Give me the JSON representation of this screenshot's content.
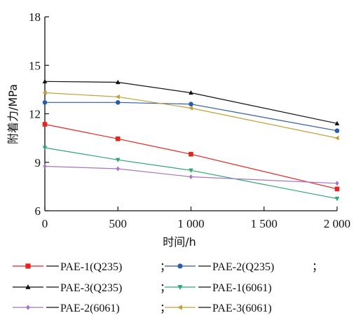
{
  "chart_data": {
    "type": "line",
    "xlabel": "时间/h",
    "ylabel": "附着力/MPa",
    "xlim": [
      0,
      2000
    ],
    "ylim": [
      6,
      18
    ],
    "xticks": [
      0,
      500,
      1000,
      1500,
      2000
    ],
    "xtick_labels": [
      "0",
      "500",
      "1 000",
      "1 500",
      "2 000"
    ],
    "yticks": [
      6,
      9,
      12,
      15,
      18
    ],
    "ytick_labels": [
      "6",
      "9",
      "12",
      "15",
      "18"
    ],
    "grid": false,
    "legend_position": "bottom",
    "legend_separator": "；",
    "x": [
      0,
      500,
      1000,
      2000
    ],
    "series": [
      {
        "name": "PAE-1(Q235)",
        "color": "#e8231f",
        "marker": "square",
        "values": [
          11.35,
          10.45,
          9.5,
          7.35
        ]
      },
      {
        "name": "PAE-2(Q235)",
        "color": "#2b5ca8",
        "marker": "circle",
        "values": [
          12.7,
          12.7,
          12.6,
          10.95
        ]
      },
      {
        "name": "PAE-3(Q235)",
        "color": "#111111",
        "marker": "triangle-up",
        "values": [
          14.0,
          13.95,
          13.3,
          11.4
        ]
      },
      {
        "name": "PAE-1(6061)",
        "color": "#2ea676",
        "marker": "triangle-down",
        "values": [
          9.9,
          9.15,
          8.5,
          6.75
        ]
      },
      {
        "name": "PAE-2(6061)",
        "color": "#a574c4",
        "marker": "diamond",
        "values": [
          8.75,
          8.6,
          8.1,
          7.7
        ]
      },
      {
        "name": "PAE-3(6061)",
        "color": "#c0a03a",
        "marker": "triangle-left",
        "values": [
          13.3,
          13.05,
          12.35,
          10.5
        ]
      }
    ]
  }
}
